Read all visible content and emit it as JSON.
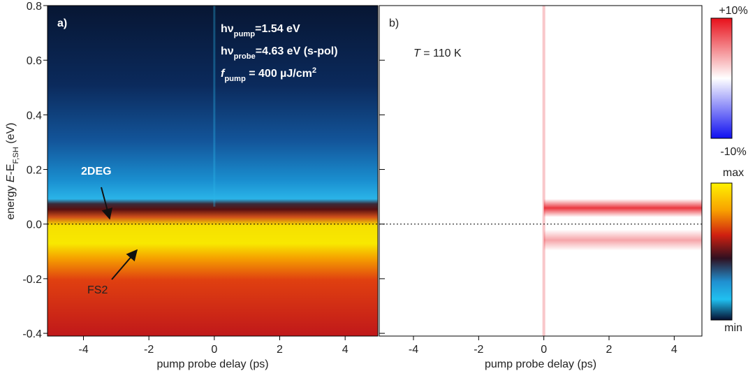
{
  "chart_data": [
    {
      "type": "heatmap",
      "panel_label": "a)",
      "xlabel": "pump probe delay (ps)",
      "ylabel": [
        {
          "text": "energy ",
          "style": "normal"
        },
        {
          "text": "E",
          "style": "italic"
        },
        {
          "text": "-E",
          "style": "normal"
        },
        {
          "text": "F,SH",
          "style": "sub"
        },
        {
          "text": " (eV)",
          "style": "normal"
        }
      ],
      "xlim": [
        -5.1,
        5.0
      ],
      "xticks": [
        -4,
        -2,
        0,
        2,
        4
      ],
      "ylim": [
        -0.41,
        0.8
      ],
      "yticks": [
        {
          "value": -0.4,
          "label": "-0.4"
        },
        {
          "value": -0.2,
          "label": "-0.2"
        },
        {
          "value": 0,
          "label": "0.0"
        },
        {
          "value": 0.2,
          "label": "0.2"
        },
        {
          "value": 0.4,
          "label": "0.4"
        },
        {
          "value": 0.6,
          "label": "0.6"
        },
        {
          "value": 0.8,
          "label": "0.8"
        }
      ],
      "parameters": [
        [
          {
            "text": "hν",
            "style": "normal"
          },
          {
            "text": "pump",
            "style": "sub"
          },
          {
            "text": "=1.54 eV",
            "style": "normal"
          }
        ],
        [
          {
            "text": "hν",
            "style": "normal"
          },
          {
            "text": "probe",
            "style": "sub"
          },
          {
            "text": "=4.63 eV (s-pol)",
            "style": "normal"
          }
        ],
        [
          {
            "text": "f",
            "style": "italic"
          },
          {
            "text": "pump",
            "style": "sub"
          },
          {
            "text": " = 400 µJ/cm",
            "style": "normal"
          },
          {
            "text": "2",
            "style": "sup"
          }
        ]
      ],
      "annotations": [
        "2DEG",
        "FS2"
      ],
      "colorbar": [
        "max",
        "min"
      ]
    },
    {
      "type": "heatmap",
      "panel_label": "b)",
      "xlabel": "pump probe delay (ps)",
      "xlim": [
        -5.05,
        4.85
      ],
      "xticks": [
        -4,
        -2,
        0,
        2,
        4
      ],
      "ylim": [
        -0.41,
        0.8
      ],
      "temperature": [
        {
          "text": "T",
          "style": "italic"
        },
        {
          "text": " = 110 K",
          "style": "normal"
        }
      ],
      "colorbar": [
        "+10%",
        "-10%"
      ]
    }
  ]
}
